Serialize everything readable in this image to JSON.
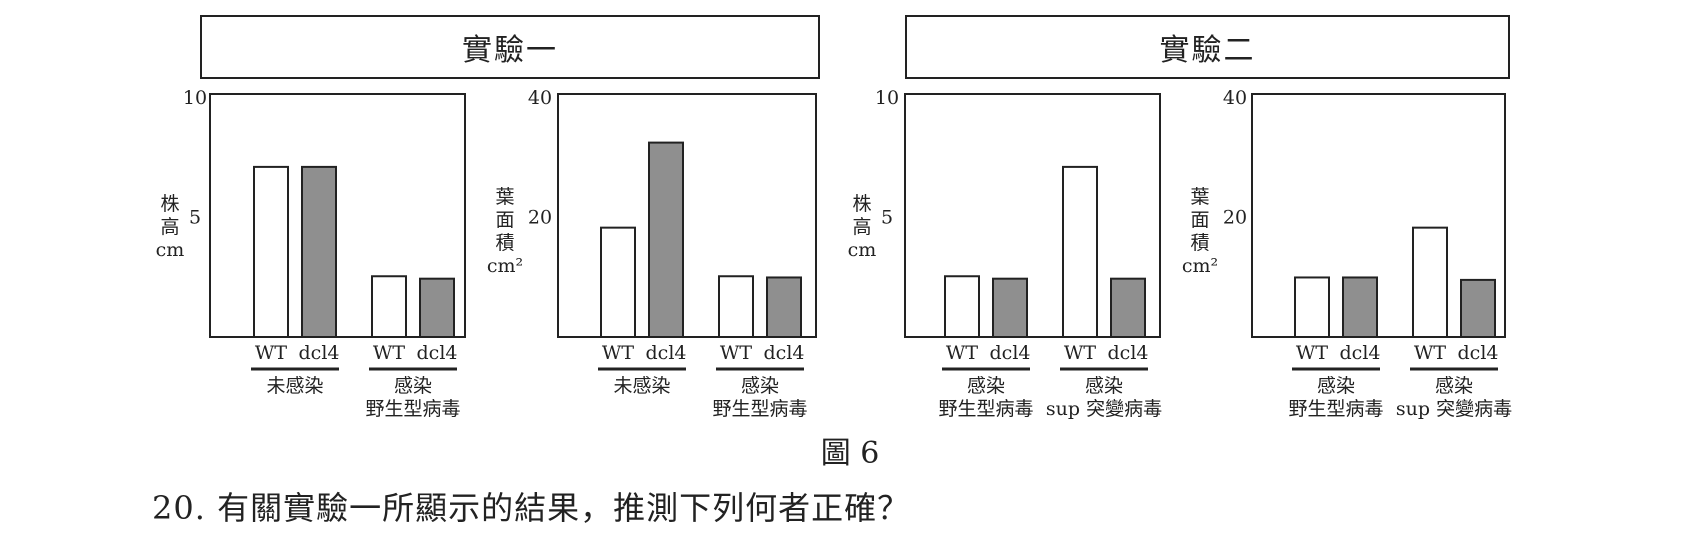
{
  "experiments": [
    {
      "title": "實驗一"
    },
    {
      "title": "實驗二"
    }
  ],
  "chart_data": [
    {
      "type": "bar",
      "ylabel": [
        "株",
        "高",
        "cm"
      ],
      "ylim": [
        0,
        10
      ],
      "yticks": [
        "10",
        "5"
      ],
      "groups": [
        {
          "label_lines": [
            "未感染"
          ],
          "bars": [
            {
              "name": "WT",
              "value": 7,
              "fill": "#ffffff"
            },
            {
              "name": "dcl4",
              "value": 7,
              "fill": "#8f8f8f"
            }
          ]
        },
        {
          "label_lines": [
            "感染",
            "野生型病毒"
          ],
          "bars": [
            {
              "name": "WT",
              "value": 2.5,
              "fill": "#ffffff"
            },
            {
              "name": "dcl4",
              "value": 2.4,
              "fill": "#8f8f8f"
            }
          ]
        }
      ]
    },
    {
      "type": "bar",
      "ylabel": [
        "葉",
        "面",
        "積",
        "cm²"
      ],
      "ylim": [
        0,
        40
      ],
      "yticks": [
        "40",
        "20"
      ],
      "groups": [
        {
          "label_lines": [
            "未感染"
          ],
          "bars": [
            {
              "name": "WT",
              "value": 18,
              "fill": "#ffffff"
            },
            {
              "name": "dcl4",
              "value": 32,
              "fill": "#8f8f8f"
            }
          ]
        },
        {
          "label_lines": [
            "感染",
            "野生型病毒"
          ],
          "bars": [
            {
              "name": "WT",
              "value": 10,
              "fill": "#ffffff"
            },
            {
              "name": "dcl4",
              "value": 9.8,
              "fill": "#8f8f8f"
            }
          ]
        }
      ]
    },
    {
      "type": "bar",
      "ylabel": [
        "株",
        "高",
        "cm"
      ],
      "ylim": [
        0,
        10
      ],
      "yticks": [
        "10",
        "5"
      ],
      "groups": [
        {
          "label_lines": [
            "感染",
            "野生型病毒"
          ],
          "bars": [
            {
              "name": "WT",
              "value": 2.5,
              "fill": "#ffffff"
            },
            {
              "name": "dcl4",
              "value": 2.4,
              "fill": "#8f8f8f"
            }
          ]
        },
        {
          "label_lines": [
            "感染",
            "sup 突變病毒"
          ],
          "bars": [
            {
              "name": "WT",
              "value": 7,
              "fill": "#ffffff"
            },
            {
              "name": "dcl4",
              "value": 2.4,
              "fill": "#8f8f8f"
            }
          ]
        }
      ]
    },
    {
      "type": "bar",
      "ylabel": [
        "葉",
        "面",
        "積",
        "cm²"
      ],
      "ylim": [
        0,
        40
      ],
      "yticks": [
        "40",
        "20"
      ],
      "groups": [
        {
          "label_lines": [
            "感染",
            "野生型病毒"
          ],
          "bars": [
            {
              "name": "WT",
              "value": 9.8,
              "fill": "#ffffff"
            },
            {
              "name": "dcl4",
              "value": 9.8,
              "fill": "#8f8f8f"
            }
          ]
        },
        {
          "label_lines": [
            "感染",
            "sup 突變病毒"
          ],
          "bars": [
            {
              "name": "WT",
              "value": 18,
              "fill": "#ffffff"
            },
            {
              "name": "dcl4",
              "value": 9.4,
              "fill": "#8f8f8f"
            }
          ]
        }
      ]
    }
  ],
  "figure_label": "圖 6",
  "question": "20. 有關實驗一所顯示的結果，推測下列何者正確？"
}
